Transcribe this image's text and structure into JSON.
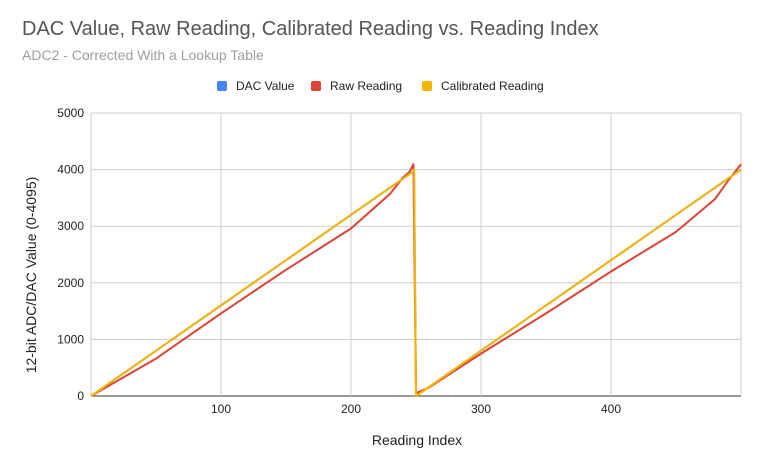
{
  "chart_data": {
    "type": "line",
    "title": "DAC Value, Raw Reading, Calibrated Reading vs. Reading Index",
    "subtitle": "ADC2 - Corrected With a Lookup Table",
    "xlabel": "Reading Index",
    "ylabel": "12-bit ADC/DAC Value (0-4095)",
    "xlim": [
      0,
      500
    ],
    "ylim": [
      0,
      5000
    ],
    "x_ticks": [
      100,
      200,
      300,
      400
    ],
    "y_ticks": [
      0,
      1000,
      2000,
      3000,
      4000,
      5000
    ],
    "grid": true,
    "legend_position": "top",
    "series": [
      {
        "name": "DAC Value",
        "color": "#4285f4",
        "points": [
          [
            0,
            0
          ],
          [
            248,
            3968
          ],
          [
            248.5,
            4000
          ],
          [
            250,
            0
          ],
          [
            500,
            4000
          ]
        ]
      },
      {
        "name": "Raw Reading",
        "color": "#db4437",
        "points": [
          [
            0,
            0
          ],
          [
            50,
            660
          ],
          [
            100,
            1460
          ],
          [
            150,
            2230
          ],
          [
            200,
            2960
          ],
          [
            230,
            3570
          ],
          [
            240,
            3860
          ],
          [
            245,
            3960
          ],
          [
            248,
            4095
          ],
          [
            250,
            50
          ],
          [
            260,
            150
          ],
          [
            300,
            750
          ],
          [
            350,
            1460
          ],
          [
            400,
            2200
          ],
          [
            450,
            2900
          ],
          [
            480,
            3480
          ],
          [
            490,
            3800
          ],
          [
            500,
            4095
          ]
        ]
      },
      {
        "name": "Calibrated Reading",
        "color": "#f4b400",
        "points": [
          [
            0,
            0
          ],
          [
            248,
            3968
          ],
          [
            248.5,
            4000
          ],
          [
            250,
            0
          ],
          [
            500,
            4000
          ]
        ]
      }
    ]
  }
}
